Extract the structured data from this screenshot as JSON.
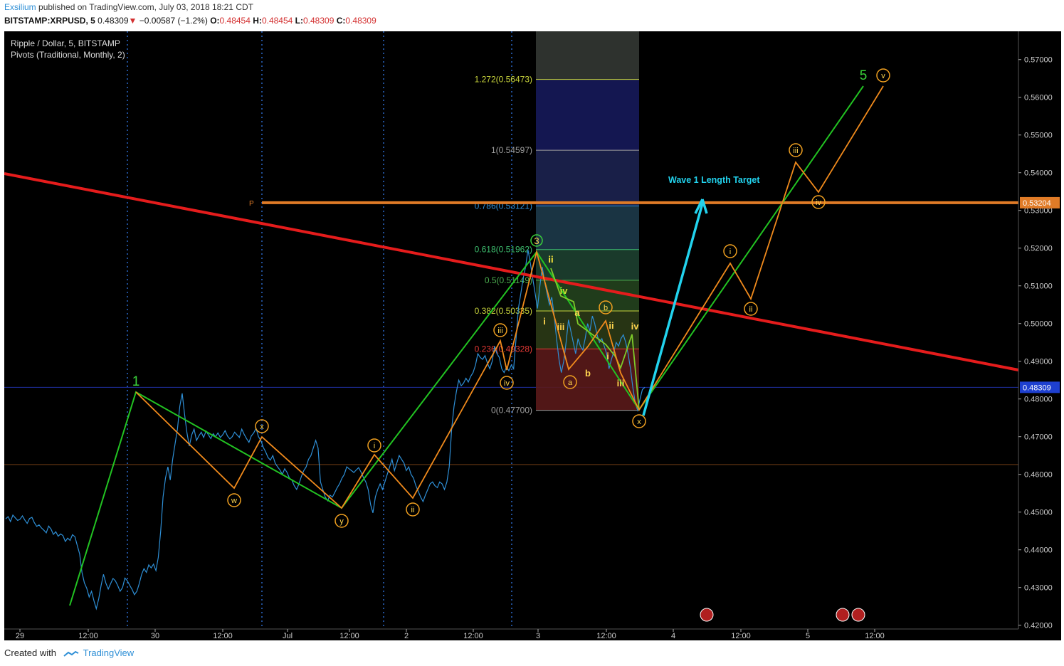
{
  "header": {
    "author": "Exsilium",
    "published": "published on TradingView.com, July 03, 2018 18:21 CDT",
    "symbol": "BITSTAMP:XRPUSD, 5",
    "last": "0.48309",
    "change": "−0.00587 (−1.2%)",
    "o_label": "O:",
    "o": "0.48454",
    "h_label": "H:",
    "h": "0.48454",
    "l_label": "L:",
    "l": "0.48309",
    "c_label": "C:",
    "c": "0.48309"
  },
  "legend": {
    "series": "Ripple / Dollar, 5, BITSTAMP",
    "indicator": "Pivots (Traditional, Monthly, 2)"
  },
  "footer": {
    "created_with": "Created with",
    "brand": "TradingView"
  },
  "colors": {
    "background": "#000000",
    "price": "#2e8fd6",
    "trendline": "#e51c1c",
    "impulse": "#22c322",
    "corrective": "#f08a1c",
    "arrow": "#22d3ee",
    "pivot": "#e07b27"
  },
  "chart_data": {
    "type": "line",
    "ylim": [
      0.419,
      0.5775
    ],
    "y_ticks": [
      "0.57000",
      "0.56000",
      "0.55000",
      "0.54000",
      "0.53000",
      "0.52000",
      "0.51000",
      "0.50000",
      "0.49000",
      "0.48000",
      "0.47000",
      "0.46000",
      "0.45000",
      "0.44000",
      "0.43000",
      "0.42000"
    ],
    "x_ticks": [
      "29",
      "12:00",
      "30",
      "12:00",
      "Jul",
      "12:00",
      "2",
      "12:00",
      "3",
      "12:00",
      "4",
      "12:00",
      "5",
      "12:00"
    ],
    "pivot_label": "P",
    "pivot_value": "0.53204",
    "last_price": "0.48309",
    "annotation": "Wave 1 Length Target",
    "fib_levels": [
      {
        "label": "1.272(0.56473)",
        "value": 0.56473,
        "color": "#c8d43c"
      },
      {
        "label": "1(0.54597)",
        "value": 0.54597,
        "color": "#9e9e9e"
      },
      {
        "label": "0.786(0.53121)",
        "value": 0.53121,
        "color": "#2e8fd6"
      },
      {
        "label": "0.618(0.51962)",
        "value": 0.51962,
        "color": "#3dbd6e"
      },
      {
        "label": "0.5(0.51149)",
        "value": 0.51149,
        "color": "#4caf50"
      },
      {
        "label": "0.382(0.50335)",
        "value": 0.50335,
        "color": "#c8d43c"
      },
      {
        "label": "0.236(0.49328)",
        "value": 0.49328,
        "color": "#e53935"
      },
      {
        "label": "0(0.47700)",
        "value": 0.477,
        "color": "#9e9e9e"
      }
    ],
    "series": [
      {
        "values": [
          0.4482,
          0.4488,
          0.4475,
          0.4492,
          0.4485,
          0.4478,
          0.4481,
          0.449,
          0.4479,
          0.447,
          0.4483,
          0.4486,
          0.4472,
          0.4462,
          0.4466,
          0.4458,
          0.4452,
          0.4445,
          0.4463,
          0.4455,
          0.4441,
          0.4448,
          0.4436,
          0.4442,
          0.4438,
          0.4422,
          0.4431,
          0.4425,
          0.444,
          0.4435,
          0.4412,
          0.4389,
          0.434,
          0.4312,
          0.4298,
          0.4275,
          0.429,
          0.4265,
          0.4244,
          0.427,
          0.4305,
          0.4335,
          0.4312,
          0.4296,
          0.431,
          0.4324,
          0.4318,
          0.4305,
          0.429,
          0.43,
          0.4325,
          0.4318,
          0.4306,
          0.4295,
          0.4281,
          0.429,
          0.431,
          0.4335,
          0.435,
          0.434,
          0.436,
          0.4352,
          0.4362,
          0.4345,
          0.438,
          0.445,
          0.454,
          0.459,
          0.462,
          0.4585,
          0.464,
          0.468,
          0.472,
          0.478,
          0.4815,
          0.476,
          0.471,
          0.4675,
          0.4705,
          0.472,
          0.469,
          0.4702,
          0.4712,
          0.4698,
          0.4715,
          0.4705,
          0.4695,
          0.4708,
          0.47,
          0.471,
          0.4698,
          0.4705,
          0.4716,
          0.4702,
          0.4694,
          0.47,
          0.4712,
          0.4705,
          0.4698,
          0.472,
          0.4706,
          0.4695,
          0.4685,
          0.4702,
          0.471,
          0.4722,
          0.47,
          0.469,
          0.4672,
          0.466,
          0.4645,
          0.4638,
          0.465,
          0.463,
          0.462,
          0.4612,
          0.46,
          0.4615,
          0.4605,
          0.459,
          0.4585,
          0.457,
          0.456,
          0.4575,
          0.4595,
          0.461,
          0.462,
          0.464,
          0.465,
          0.467,
          0.469,
          0.467,
          0.458,
          0.456,
          0.454,
          0.453,
          0.4545,
          0.454,
          0.4552,
          0.4565,
          0.4575,
          0.459,
          0.46,
          0.462,
          0.4615,
          0.461,
          0.4605,
          0.4612,
          0.4618,
          0.4606,
          0.4592,
          0.458,
          0.456,
          0.452,
          0.4498,
          0.454,
          0.456,
          0.4575,
          0.456,
          0.458,
          0.46,
          0.462,
          0.464,
          0.461,
          0.463,
          0.465,
          0.464,
          0.463,
          0.461,
          0.462,
          0.46,
          0.459,
          0.457,
          0.4555,
          0.454,
          0.4528,
          0.4545,
          0.456,
          0.4575,
          0.458,
          0.457,
          0.4565,
          0.458,
          0.4575,
          0.456,
          0.458,
          0.462,
          0.472,
          0.478,
          0.482,
          0.485,
          0.4835,
          0.4842,
          0.4855,
          0.4845,
          0.486,
          0.487,
          0.489,
          0.492,
          0.491,
          0.4905,
          0.4915,
          0.4895,
          0.488,
          0.49,
          0.494,
          0.492,
          0.491,
          0.488,
          0.487,
          0.4885,
          0.4875,
          0.489,
          0.488,
          0.496,
          0.504,
          0.508,
          0.512,
          0.515,
          0.5196,
          0.516,
          0.512,
          0.508,
          0.504,
          0.51,
          0.515,
          0.511,
          0.508,
          0.505,
          0.507,
          0.502,
          0.496,
          0.4905,
          0.487,
          0.49,
          0.495,
          0.501,
          0.498,
          0.495,
          0.492,
          0.496,
          0.494,
          0.493,
          0.496,
          0.5,
          0.498,
          0.502,
          0.5,
          0.497,
          0.495,
          0.496,
          0.494,
          0.492,
          0.488,
          0.4905,
          0.4925,
          0.495,
          0.494,
          0.496,
          0.497,
          0.495,
          0.492,
          0.488,
          0.483,
          0.479,
          0.477,
          0.48,
          0.4825,
          0.4831
        ]
      }
    ],
    "waves": {
      "impulse_labels": [
        "1",
        "3",
        "5"
      ],
      "sub_labels": [
        "i",
        "ii",
        "iii",
        "iv",
        "a",
        "b",
        "i",
        "ii",
        "iii",
        "iv",
        "i",
        "iii"
      ],
      "circled": [
        "w",
        "x",
        "y",
        "i",
        "ii",
        "iii",
        "iv",
        "a",
        "b",
        "x",
        "i",
        "ii",
        "iii",
        "iv",
        "v"
      ]
    }
  }
}
